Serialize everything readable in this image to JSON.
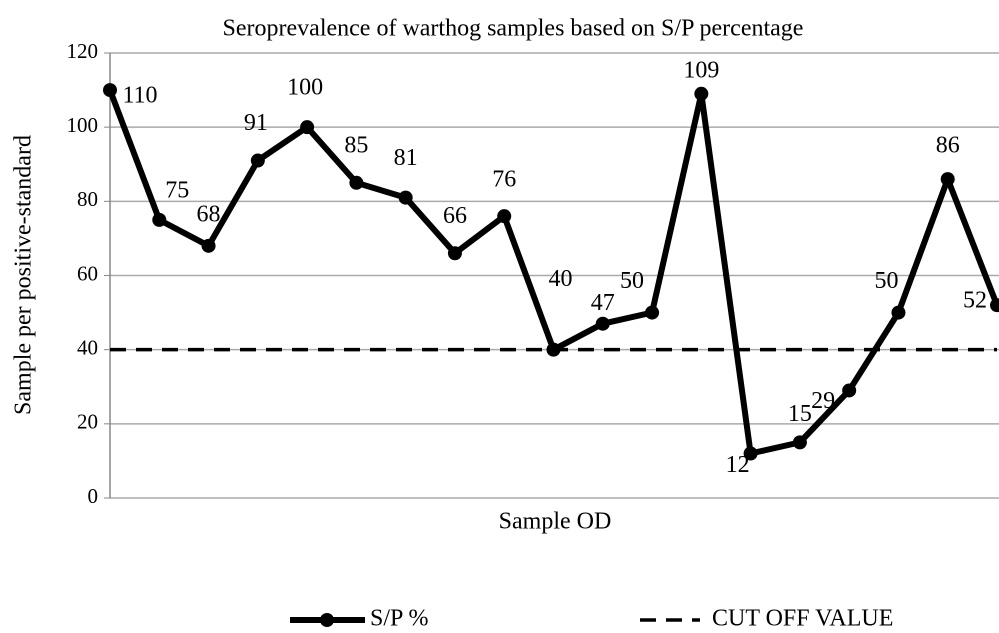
{
  "chart_data": {
    "type": "line",
    "title": "Seroprevalence of warthog samples based on S/P percentage",
    "ylabel": "Sample per positive-standard",
    "xlabel": "Sample OD",
    "categories": [
      null,
      null,
      null,
      null,
      null,
      null,
      null,
      null,
      null,
      null,
      null,
      null,
      null,
      null,
      null,
      null,
      null,
      null,
      null
    ],
    "series": [
      {
        "name": "S/P %",
        "color": "#000000",
        "style": "solid-marker",
        "values": [
          110,
          75,
          68,
          91,
          100,
          85,
          81,
          66,
          76,
          40,
          47,
          50,
          109,
          12,
          15,
          29,
          50,
          86,
          52
        ]
      },
      {
        "name": "CUT OFF VALUE",
        "color": "#000000",
        "style": "dashed",
        "values": [
          40,
          40,
          40,
          40,
          40,
          40,
          40,
          40,
          40,
          40,
          40,
          40,
          40,
          40,
          40,
          40,
          40,
          40,
          40
        ]
      }
    ],
    "ylim": [
      0,
      120
    ],
    "yticks": [
      0,
      20,
      40,
      60,
      80,
      100,
      120
    ],
    "grid": true,
    "legend": "bottom"
  }
}
